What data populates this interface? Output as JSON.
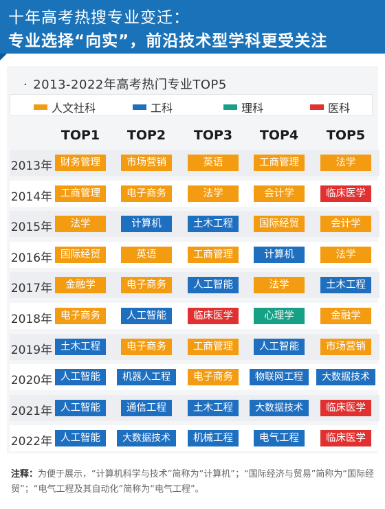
{
  "header": {
    "title_line1": "十年高考热搜专业变迁：",
    "title_line2": "专业选择“向实”，前沿技术型学科更受关注"
  },
  "subtitle": "2013-2022年高考热门专业TOP5",
  "legend": [
    {
      "key": "humanities",
      "label": "人文社科",
      "color": "#f39c12"
    },
    {
      "key": "engineering",
      "label": "工科",
      "color": "#1f6fc0"
    },
    {
      "key": "science",
      "label": "理科",
      "color": "#16a085"
    },
    {
      "key": "medicine",
      "label": "医科",
      "color": "#e0302f"
    }
  ],
  "chart_data": {
    "type": "table",
    "title": "2013-2022年高考热门专业TOP5",
    "columns": [
      "TOP1",
      "TOP2",
      "TOP3",
      "TOP4",
      "TOP5"
    ],
    "rows": [
      {
        "year": "2013年",
        "cells": [
          [
            "财务管理",
            "humanities"
          ],
          [
            "市场营销",
            "humanities"
          ],
          [
            "英语",
            "humanities"
          ],
          [
            "工商管理",
            "humanities"
          ],
          [
            "法学",
            "humanities"
          ]
        ]
      },
      {
        "year": "2014年",
        "cells": [
          [
            "工商管理",
            "humanities"
          ],
          [
            "电子商务",
            "humanities"
          ],
          [
            "法学",
            "humanities"
          ],
          [
            "会计学",
            "humanities"
          ],
          [
            "临床医学",
            "medicine"
          ]
        ]
      },
      {
        "year": "2015年",
        "cells": [
          [
            "法学",
            "humanities"
          ],
          [
            "计算机",
            "engineering"
          ],
          [
            "土木工程",
            "engineering"
          ],
          [
            "国际经贸",
            "humanities"
          ],
          [
            "会计学",
            "humanities"
          ]
        ]
      },
      {
        "year": "2016年",
        "cells": [
          [
            "国际经贸",
            "humanities"
          ],
          [
            "英语",
            "humanities"
          ],
          [
            "工商管理",
            "humanities"
          ],
          [
            "计算机",
            "engineering"
          ],
          [
            "法学",
            "humanities"
          ]
        ]
      },
      {
        "year": "2017年",
        "cells": [
          [
            "金融学",
            "humanities"
          ],
          [
            "电子商务",
            "humanities"
          ],
          [
            "人工智能",
            "engineering"
          ],
          [
            "法学",
            "humanities"
          ],
          [
            "土木工程",
            "engineering"
          ]
        ]
      },
      {
        "year": "2018年",
        "cells": [
          [
            "电子商务",
            "humanities"
          ],
          [
            "人工智能",
            "engineering"
          ],
          [
            "临床医学",
            "medicine"
          ],
          [
            "心理学",
            "science"
          ],
          [
            "金融学",
            "humanities"
          ]
        ]
      },
      {
        "year": "2019年",
        "cells": [
          [
            "土木工程",
            "engineering"
          ],
          [
            "电子商务",
            "humanities"
          ],
          [
            "工商管理",
            "humanities"
          ],
          [
            "人工智能",
            "engineering"
          ],
          [
            "市场营销",
            "humanities"
          ]
        ]
      },
      {
        "year": "2020年",
        "cells": [
          [
            "人工智能",
            "engineering"
          ],
          [
            "机器人工程",
            "engineering"
          ],
          [
            "电子商务",
            "humanities"
          ],
          [
            "物联网工程",
            "engineering"
          ],
          [
            "大数据技术",
            "engineering"
          ]
        ]
      },
      {
        "year": "2021年",
        "cells": [
          [
            "人工智能",
            "engineering"
          ],
          [
            "通信工程",
            "engineering"
          ],
          [
            "土木工程",
            "engineering"
          ],
          [
            "大数据技术",
            "engineering"
          ],
          [
            "临床医学",
            "medicine"
          ]
        ]
      },
      {
        "year": "2022年",
        "cells": [
          [
            "人工智能",
            "engineering"
          ],
          [
            "大数据技术",
            "engineering"
          ],
          [
            "机械工程",
            "engineering"
          ],
          [
            "电气工程",
            "engineering"
          ],
          [
            "临床医学",
            "medicine"
          ]
        ]
      }
    ]
  },
  "note": {
    "label": "注释：",
    "text": "为便于展示，“计算机科学与技术”简称为“计算机”；“国际经济与贸易”简称为“国际经贸”；“电气工程及其自动化”简称为“电气工程”。"
  }
}
